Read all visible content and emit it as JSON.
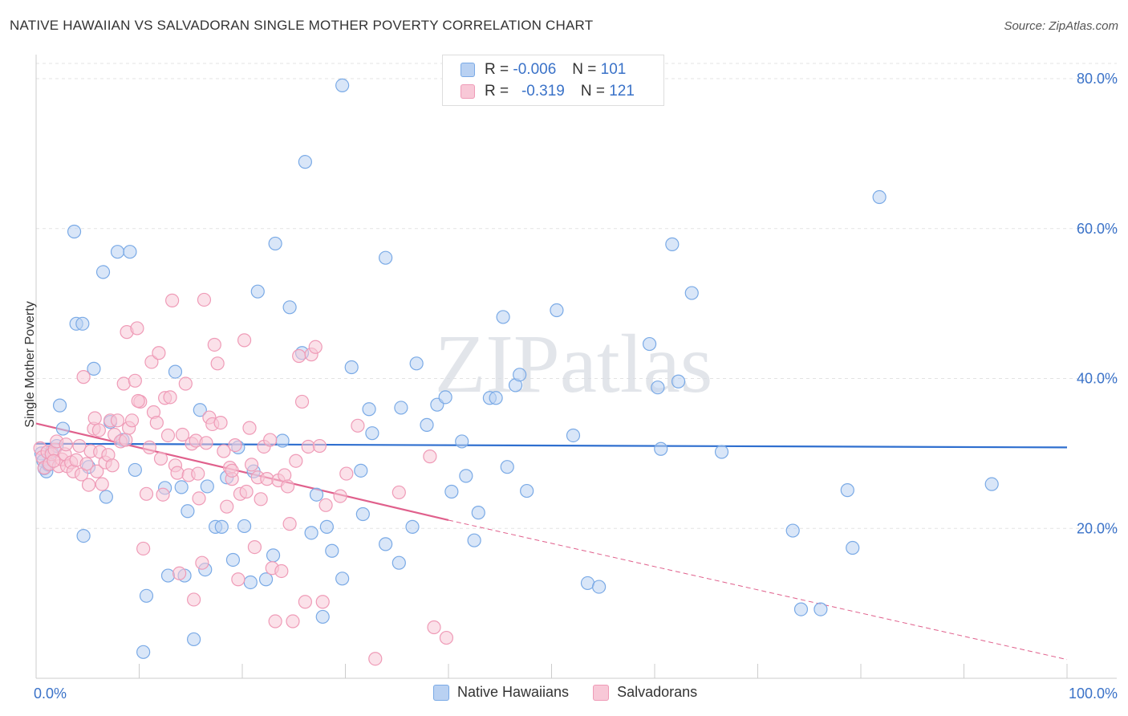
{
  "chart_data": {
    "type": "scatter",
    "title": "NATIVE HAWAIIAN VS SALVADORAN SINGLE MOTHER POVERTY CORRELATION CHART",
    "source": "Source: ZipAtlas.com",
    "ylabel": "Single Mother Poverty",
    "xlabel": "",
    "xlim": [
      0,
      100
    ],
    "ylim": [
      0,
      80
    ],
    "x_tick_labels": [
      "0.0%",
      "100.0%"
    ],
    "y_tick_labels": [
      "20.0%",
      "40.0%",
      "60.0%",
      "80.0%"
    ],
    "y_ticks": [
      20,
      40,
      60,
      80
    ],
    "watermark": "ZIPatlas",
    "legend_stats": [
      {
        "r_label": "R =",
        "r_value": "-0.006",
        "n_label": "N =",
        "n_value": "101"
      },
      {
        "r_label": "R =",
        "r_value": "-0.319",
        "n_label": "N =",
        "n_value": "121"
      }
    ],
    "series": [
      {
        "name": "Native Hawaiians",
        "color": "#7aaae6",
        "fill": "#b9d1f2",
        "trend": {
          "x0": 0,
          "y0": 31.3,
          "x1": 100,
          "y1": 30.8,
          "style": "solid",
          "color": "#2f6fcf"
        },
        "points": [
          [
            0.5,
            30
          ],
          [
            0.7,
            29
          ],
          [
            0.8,
            28
          ],
          [
            1,
            27.6
          ],
          [
            1.2,
            28.5
          ],
          [
            1.5,
            30.2
          ],
          [
            2,
            31
          ],
          [
            2.3,
            36.4
          ],
          [
            2.6,
            33.3
          ],
          [
            3.7,
            59.6
          ],
          [
            3.9,
            47.3
          ],
          [
            4.5,
            47.3
          ],
          [
            4.6,
            19
          ],
          [
            5.1,
            28.2
          ],
          [
            5.6,
            41.3
          ],
          [
            6.5,
            54.2
          ],
          [
            6.8,
            24.2
          ],
          [
            7.2,
            34.2
          ],
          [
            7.9,
            56.9
          ],
          [
            8.4,
            31.8
          ],
          [
            9.1,
            56.9
          ],
          [
            9.6,
            27.8
          ],
          [
            10.4,
            3.5
          ],
          [
            10.7,
            11
          ],
          [
            12.5,
            25.4
          ],
          [
            12.8,
            13.7
          ],
          [
            13.5,
            40.9
          ],
          [
            14.1,
            25.5
          ],
          [
            14.4,
            13.7
          ],
          [
            14.7,
            22.3
          ],
          [
            15.3,
            5.2
          ],
          [
            15.9,
            35.8
          ],
          [
            16.4,
            14.5
          ],
          [
            16.6,
            25.6
          ],
          [
            17.4,
            20.2
          ],
          [
            18,
            20.2
          ],
          [
            18.5,
            26.8
          ],
          [
            19.1,
            15.8
          ],
          [
            19.6,
            30.8
          ],
          [
            20.2,
            20.3
          ],
          [
            20.8,
            12.8
          ],
          [
            21.1,
            27.6
          ],
          [
            21.5,
            51.6
          ],
          [
            22.3,
            13.2
          ],
          [
            23,
            16.4
          ],
          [
            23.2,
            58
          ],
          [
            23.9,
            31.7
          ],
          [
            24.6,
            49.5
          ],
          [
            25.8,
            43.4
          ],
          [
            26.1,
            68.9
          ],
          [
            26.7,
            19.4
          ],
          [
            27.2,
            24.5
          ],
          [
            27.8,
            8.2
          ],
          [
            28.2,
            20.2
          ],
          [
            28.7,
            17
          ],
          [
            29.7,
            13.3
          ],
          [
            30.6,
            41.5
          ],
          [
            31.5,
            27.7
          ],
          [
            31.7,
            21.9
          ],
          [
            32.3,
            35.9
          ],
          [
            32.6,
            32.7
          ],
          [
            33.9,
            17.9
          ],
          [
            35.2,
            15.4
          ],
          [
            35.4,
            36.1
          ],
          [
            36.5,
            20.2
          ],
          [
            36.9,
            42
          ],
          [
            37.9,
            33.8
          ],
          [
            38.9,
            36.5
          ],
          [
            39.7,
            37.5
          ],
          [
            40.3,
            24.9
          ],
          [
            41.3,
            31.6
          ],
          [
            41.7,
            27
          ],
          [
            42.5,
            18.4
          ],
          [
            42.9,
            22.1
          ],
          [
            44,
            37.4
          ],
          [
            44.6,
            37.4
          ],
          [
            45.3,
            48.2
          ],
          [
            45.7,
            28.2
          ],
          [
            46.5,
            39.1
          ],
          [
            46.9,
            40.5
          ],
          [
            47.6,
            25
          ],
          [
            50.5,
            49.1
          ],
          [
            52.1,
            32.4
          ],
          [
            53.5,
            12.7
          ],
          [
            54.6,
            12.2
          ],
          [
            59.5,
            44.6
          ],
          [
            60.3,
            38.8
          ],
          [
            60.6,
            30.6
          ],
          [
            61.7,
            57.9
          ],
          [
            62.3,
            39.6
          ],
          [
            63.6,
            51.4
          ],
          [
            66.5,
            30.2
          ],
          [
            73.4,
            19.7
          ],
          [
            74.2,
            9.2
          ],
          [
            76.1,
            9.2
          ],
          [
            78.7,
            25.1
          ],
          [
            79.2,
            17.4
          ],
          [
            81.8,
            64.2
          ],
          [
            92.7,
            25.9
          ],
          [
            29.7,
            79.1
          ],
          [
            33.9,
            56.1
          ]
        ]
      },
      {
        "name": "Salvadorans",
        "color": "#ef9bb7",
        "fill": "#f8c8d7",
        "trend": {
          "x0": 0,
          "y0": 34,
          "x1": 40,
          "y1": 21.1,
          "style": "solid",
          "color": "#e0608c"
        },
        "trend_extension": {
          "x0": 40,
          "y0": 21.1,
          "x1": 100,
          "y1": 2.5,
          "style": "dashed",
          "color": "#e0608c"
        },
        "points": [
          [
            0.4,
            30.7
          ],
          [
            0.6,
            29.5
          ],
          [
            0.8,
            28.1
          ],
          [
            1.1,
            30.2
          ],
          [
            1.3,
            28.6
          ],
          [
            1.5,
            29.9
          ],
          [
            1.8,
            30.5
          ],
          [
            2,
            31.6
          ],
          [
            2.2,
            28.3
          ],
          [
            2.5,
            29.2
          ],
          [
            2.8,
            29.9
          ],
          [
            3,
            28.3
          ],
          [
            3.4,
            28.8
          ],
          [
            3.6,
            27.6
          ],
          [
            3.9,
            29.1
          ],
          [
            4.2,
            31
          ],
          [
            4.4,
            27.2
          ],
          [
            4.6,
            40.2
          ],
          [
            4.9,
            28.6
          ],
          [
            5.1,
            25.8
          ],
          [
            5.3,
            30.3
          ],
          [
            5.6,
            33.3
          ],
          [
            5.9,
            27.6
          ],
          [
            6.2,
            30.2
          ],
          [
            6.4,
            25.9
          ],
          [
            6.7,
            28.8
          ],
          [
            7,
            29.8
          ],
          [
            7.2,
            34.4
          ],
          [
            7.6,
            32.5
          ],
          [
            7.9,
            34.4
          ],
          [
            8.2,
            31.6
          ],
          [
            8.5,
            39.3
          ],
          [
            8.8,
            46.2
          ],
          [
            9,
            33.4
          ],
          [
            9.3,
            34.4
          ],
          [
            9.6,
            39.7
          ],
          [
            9.8,
            46.7
          ],
          [
            10.1,
            36.9
          ],
          [
            10.4,
            17.3
          ],
          [
            10.7,
            24.6
          ],
          [
            11,
            30.8
          ],
          [
            11.2,
            42.2
          ],
          [
            11.4,
            35.5
          ],
          [
            11.7,
            34.1
          ],
          [
            11.9,
            43.4
          ],
          [
            12.3,
            24.5
          ],
          [
            12.5,
            37.4
          ],
          [
            12.8,
            32.4
          ],
          [
            13,
            37.5
          ],
          [
            13.2,
            50.4
          ],
          [
            13.5,
            28.4
          ],
          [
            13.7,
            27.4
          ],
          [
            13.9,
            14
          ],
          [
            14.2,
            32.5
          ],
          [
            14.5,
            39.3
          ],
          [
            14.8,
            27.1
          ],
          [
            15.1,
            31.3
          ],
          [
            15.3,
            10.5
          ],
          [
            15.5,
            31.7
          ],
          [
            15.8,
            24
          ],
          [
            16.1,
            15.4
          ],
          [
            16.3,
            50.5
          ],
          [
            16.5,
            31.4
          ],
          [
            16.8,
            34.8
          ],
          [
            17.1,
            33.9
          ],
          [
            17.3,
            44.5
          ],
          [
            17.6,
            42
          ],
          [
            17.9,
            34.1
          ],
          [
            18.2,
            30.3
          ],
          [
            18.5,
            22.9
          ],
          [
            18.8,
            28.1
          ],
          [
            19,
            26.6
          ],
          [
            19.3,
            31.1
          ],
          [
            19.6,
            13.2
          ],
          [
            19.8,
            24.6
          ],
          [
            20.2,
            45.1
          ],
          [
            20.4,
            24.9
          ],
          [
            20.7,
            33.4
          ],
          [
            20.9,
            28.5
          ],
          [
            21.2,
            17.5
          ],
          [
            21.5,
            26.8
          ],
          [
            21.8,
            23.9
          ],
          [
            22.1,
            30.9
          ],
          [
            22.4,
            26.6
          ],
          [
            22.7,
            31.8
          ],
          [
            22.9,
            14.7
          ],
          [
            23.2,
            7.6
          ],
          [
            23.5,
            26.4
          ],
          [
            23.8,
            14.3
          ],
          [
            24.1,
            27.1
          ],
          [
            24.4,
            25.6
          ],
          [
            24.6,
            20.6
          ],
          [
            24.9,
            7.6
          ],
          [
            25.2,
            29
          ],
          [
            25.5,
            43
          ],
          [
            25.8,
            36.9
          ],
          [
            26.1,
            10.2
          ],
          [
            26.4,
            30.9
          ],
          [
            26.7,
            43.2
          ],
          [
            27.1,
            44.2
          ],
          [
            27.5,
            31
          ],
          [
            27.8,
            10.2
          ],
          [
            28.1,
            23.1
          ],
          [
            29.5,
            24.3
          ],
          [
            30.1,
            27.3
          ],
          [
            31.2,
            33.7
          ],
          [
            32.9,
            2.6
          ],
          [
            35.2,
            24.8
          ],
          [
            38.2,
            29.6
          ],
          [
            38.6,
            6.8
          ],
          [
            39.8,
            5.4
          ],
          [
            15.7,
            27.3
          ],
          [
            19,
            27.7
          ],
          [
            12.1,
            29.3
          ],
          [
            8.7,
            31.8
          ],
          [
            6.1,
            33.1
          ],
          [
            2.9,
            31.2
          ],
          [
            9.9,
            37
          ],
          [
            5.7,
            34.7
          ],
          [
            1.7,
            29
          ],
          [
            7.4,
            28.4
          ]
        ]
      }
    ]
  }
}
